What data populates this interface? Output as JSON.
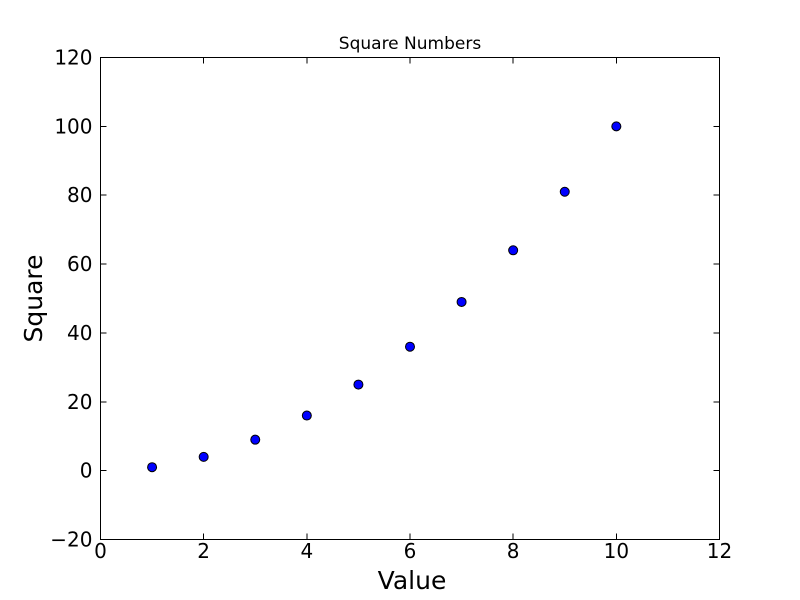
{
  "chart_data": {
    "type": "scatter",
    "title": "Square Numbers",
    "xlabel": "Value",
    "ylabel": "Square",
    "x": [
      1,
      2,
      3,
      4,
      5,
      6,
      7,
      8,
      9,
      10
    ],
    "y": [
      1,
      4,
      9,
      16,
      25,
      36,
      49,
      64,
      81,
      100
    ],
    "xlim": [
      0,
      12
    ],
    "ylim": [
      -20,
      120
    ],
    "xticks": [
      0,
      2,
      4,
      6,
      8,
      10,
      12
    ],
    "yticks": [
      -20,
      0,
      20,
      40,
      60,
      80,
      100,
      120
    ],
    "grid": false,
    "legend": "none",
    "marker": {
      "shape": "circle",
      "fill_color": "#0000ff",
      "edge_color": "#000000"
    },
    "frame_color": "#000000",
    "text_color": "#000000",
    "background_color": "#ffffff"
  }
}
